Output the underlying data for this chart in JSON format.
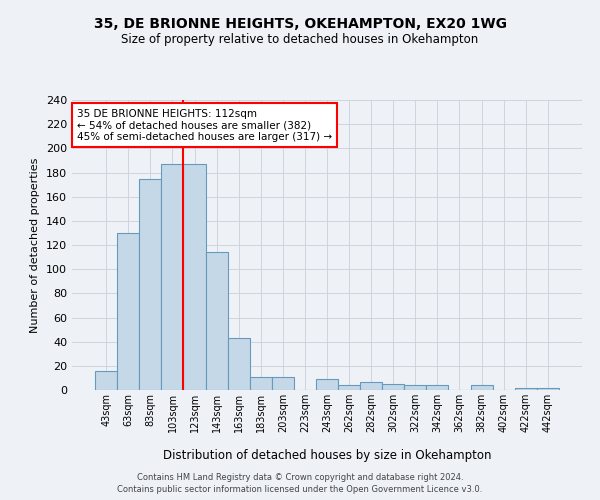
{
  "title": "35, DE BRIONNE HEIGHTS, OKEHAMPTON, EX20 1WG",
  "subtitle": "Size of property relative to detached houses in Okehampton",
  "xlabel": "Distribution of detached houses by size in Okehampton",
  "ylabel": "Number of detached properties",
  "bar_labels": [
    "43sqm",
    "63sqm",
    "83sqm",
    "103sqm",
    "123sqm",
    "143sqm",
    "163sqm",
    "183sqm",
    "203sqm",
    "223sqm",
    "243sqm",
    "262sqm",
    "282sqm",
    "302sqm",
    "322sqm",
    "342sqm",
    "362sqm",
    "382sqm",
    "402sqm",
    "422sqm",
    "442sqm"
  ],
  "bar_values": [
    16,
    130,
    175,
    187,
    187,
    114,
    43,
    11,
    11,
    0,
    9,
    4,
    7,
    5,
    4,
    4,
    0,
    4,
    0,
    2,
    2
  ],
  "bar_color": "#c5d8e8",
  "bar_edge_color": "#6699bb",
  "vline_x": 3.5,
  "vline_color": "red",
  "annotation_title": "35 DE BRIONNE HEIGHTS: 112sqm",
  "annotation_line1": "← 54% of detached houses are smaller (382)",
  "annotation_line2": "45% of semi-detached houses are larger (317) →",
  "annotation_box_color": "white",
  "annotation_box_edge_color": "red",
  "ylim": [
    0,
    240
  ],
  "yticks": [
    0,
    20,
    40,
    60,
    80,
    100,
    120,
    140,
    160,
    180,
    200,
    220,
    240
  ],
  "footer_line1": "Contains HM Land Registry data © Crown copyright and database right 2024.",
  "footer_line2": "Contains public sector information licensed under the Open Government Licence v3.0.",
  "background_color": "#eef2f7",
  "grid_color": "#c8d0dc"
}
